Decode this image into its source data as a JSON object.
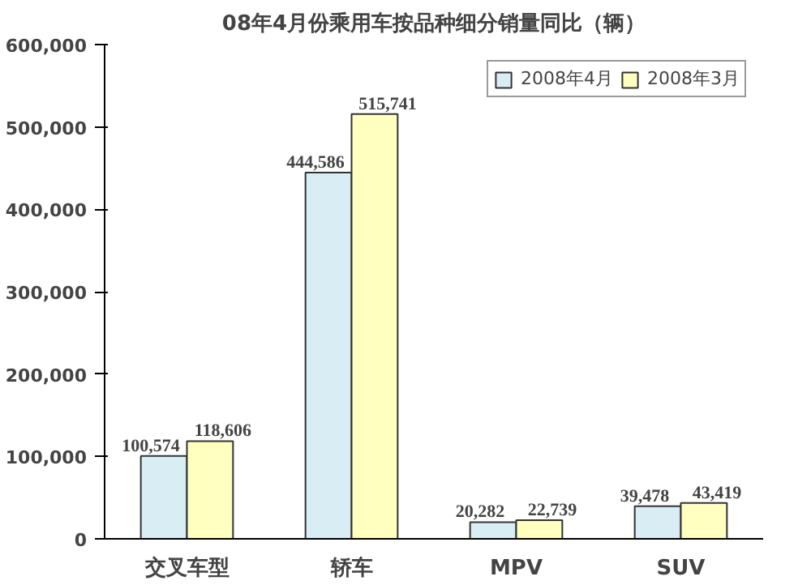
{
  "chart_data": {
    "type": "bar",
    "title": "08年4月份乘用车按品种细分销量同比（辆）",
    "categories": [
      "交叉车型",
      "轿车",
      "MPV",
      "SUV"
    ],
    "series": [
      {
        "name": "2008年4月",
        "color": "#d8eef4",
        "values": [
          100574,
          444586,
          20282,
          39478
        ],
        "value_labels": [
          "100,574",
          "444,586",
          "20,282",
          "39,478"
        ]
      },
      {
        "name": "2008年3月",
        "color": "#ffffc0",
        "values": [
          118606,
          515741,
          22739,
          43419
        ],
        "value_labels": [
          "118,606",
          "515,741",
          "22,739",
          "43,419"
        ]
      }
    ],
    "ylim": [
      0,
      600000
    ],
    "yticks": [
      {
        "value": 0,
        "label": "0"
      },
      {
        "value": 100000,
        "label": "100,000"
      },
      {
        "value": 200000,
        "label": "200,000"
      },
      {
        "value": 300000,
        "label": "300,000"
      },
      {
        "value": 400000,
        "label": "400,000"
      },
      {
        "value": 500000,
        "label": "500,000"
      },
      {
        "value": 600000,
        "label": "600,000"
      }
    ],
    "legend": "top right",
    "grid": false
  }
}
